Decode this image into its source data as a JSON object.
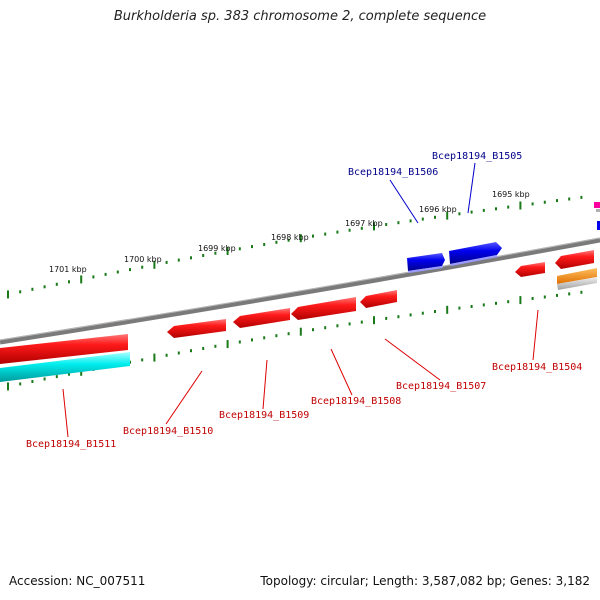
{
  "title": "Burkholderia sp. 383 chromosome 2, complete sequence",
  "footer": {
    "accession": "Accession: NC_007511",
    "topology": "Topology: circular; Length: 3,587,082 bp; Genes: 3,182"
  },
  "colors": {
    "backbone": "#808080",
    "tick": "#1a7a1a",
    "forward_gene": "#0000e0",
    "reverse_gene": "#ff0000",
    "cds_track": "#00e5e5",
    "orange_feature": "#ff8c00",
    "magenta_feature": "#ff00a0",
    "label_forward": "#00008b",
    "label_reverse": "#c00000"
  },
  "scale": {
    "unit": "kbp",
    "major_ticks": [
      {
        "label": "1701 kbp"
      },
      {
        "label": "1700 kbp"
      },
      {
        "label": "1699 kbp"
      },
      {
        "label": "1698 kbp"
      },
      {
        "label": "1697 kbp"
      },
      {
        "label": "1696 kbp"
      },
      {
        "label": "1695 kbp"
      }
    ]
  },
  "genes": [
    {
      "name": "Bcep18194_B1505",
      "strand": "forward"
    },
    {
      "name": "Bcep18194_B1506",
      "strand": "forward"
    },
    {
      "name": "Bcep18194_B1504",
      "strand": "reverse"
    },
    {
      "name": "Bcep18194_B1507",
      "strand": "reverse"
    },
    {
      "name": "Bcep18194_B1508",
      "strand": "reverse"
    },
    {
      "name": "Bcep18194_B1509",
      "strand": "reverse"
    },
    {
      "name": "Bcep18194_B1510",
      "strand": "reverse"
    },
    {
      "name": "Bcep18194_B1511",
      "strand": "reverse"
    }
  ]
}
